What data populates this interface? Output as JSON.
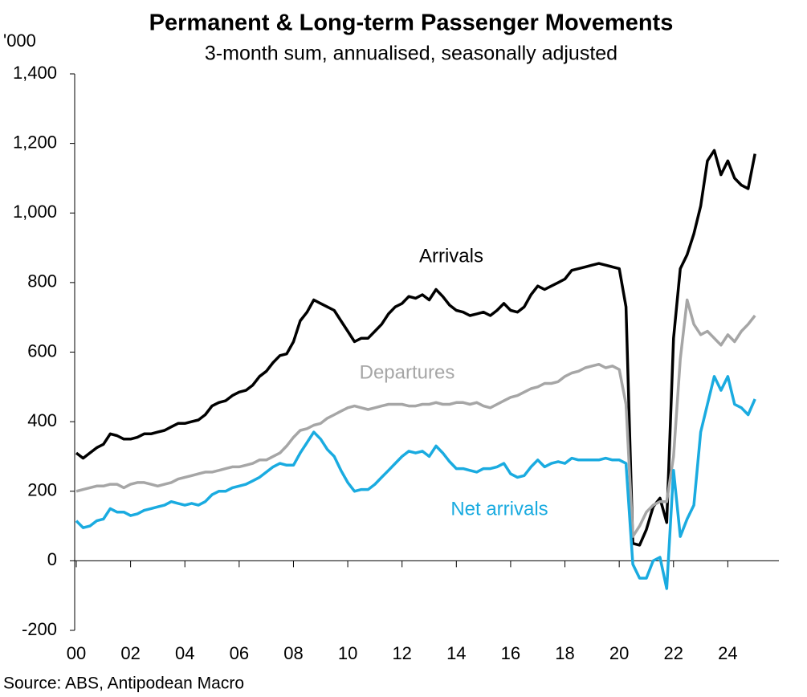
{
  "chart_data": {
    "type": "line",
    "title": "Permanent & Long-term Passenger Movements",
    "subtitle": "3-month sum, annualised, seasonally adjusted",
    "y_label": "'000",
    "source": "Source: ABS, Antipodean Macro",
    "xlim": [
      2000,
      2026
    ],
    "xticks": [
      {
        "value": 2000,
        "label": "00"
      },
      {
        "value": 2002,
        "label": "02"
      },
      {
        "value": 2004,
        "label": "04"
      },
      {
        "value": 2006,
        "label": "06"
      },
      {
        "value": 2008,
        "label": "08"
      },
      {
        "value": 2010,
        "label": "10"
      },
      {
        "value": 2012,
        "label": "12"
      },
      {
        "value": 2014,
        "label": "14"
      },
      {
        "value": 2016,
        "label": "16"
      },
      {
        "value": 2018,
        "label": "18"
      },
      {
        "value": 2020,
        "label": "20"
      },
      {
        "value": 2022,
        "label": "22"
      },
      {
        "value": 2024,
        "label": "24"
      }
    ],
    "ylim": [
      -200,
      1400
    ],
    "yticks": [
      -200,
      0,
      200,
      400,
      600,
      800,
      {
        "value": 1000,
        "label": "1,000"
      },
      {
        "value": 1200,
        "label": "1,200"
      },
      {
        "value": 1400,
        "label": "1,400"
      }
    ],
    "grid": false,
    "x": [
      2000,
      2000.25,
      2000.5,
      2000.75,
      2001,
      2001.25,
      2001.5,
      2001.75,
      2002,
      2002.25,
      2002.5,
      2002.75,
      2003,
      2003.25,
      2003.5,
      2003.75,
      2004,
      2004.25,
      2004.5,
      2004.75,
      2005,
      2005.25,
      2005.5,
      2005.75,
      2006,
      2006.25,
      2006.5,
      2006.75,
      2007,
      2007.25,
      2007.5,
      2007.75,
      2008,
      2008.25,
      2008.5,
      2008.75,
      2009,
      2009.25,
      2009.5,
      2009.75,
      2010,
      2010.25,
      2010.5,
      2010.75,
      2011,
      2011.25,
      2011.5,
      2011.75,
      2012,
      2012.25,
      2012.5,
      2012.75,
      2013,
      2013.25,
      2013.5,
      2013.75,
      2014,
      2014.25,
      2014.5,
      2014.75,
      2015,
      2015.25,
      2015.5,
      2015.75,
      2016,
      2016.25,
      2016.5,
      2016.75,
      2017,
      2017.25,
      2017.5,
      2017.75,
      2018,
      2018.25,
      2018.5,
      2018.75,
      2019,
      2019.25,
      2019.5,
      2019.75,
      2020,
      2020.25,
      2020.5,
      2020.75,
      2021,
      2021.25,
      2021.5,
      2021.75,
      2022,
      2022.25,
      2022.5,
      2022.75,
      2023,
      2023.25,
      2023.5,
      2023.75,
      2024,
      2024.25,
      2024.5,
      2024.75,
      2025
    ],
    "series": [
      {
        "name": "Arrivals",
        "color": "#000000",
        "values": [
          310,
          295,
          310,
          325,
          335,
          365,
          360,
          350,
          350,
          355,
          365,
          365,
          370,
          375,
          385,
          395,
          395,
          400,
          405,
          420,
          445,
          455,
          460,
          475,
          485,
          490,
          505,
          530,
          545,
          570,
          590,
          595,
          630,
          690,
          715,
          750,
          740,
          730,
          720,
          690,
          660,
          630,
          640,
          640,
          660,
          680,
          710,
          730,
          740,
          760,
          755,
          765,
          750,
          780,
          760,
          735,
          720,
          715,
          705,
          710,
          715,
          705,
          720,
          740,
          720,
          715,
          730,
          765,
          790,
          780,
          790,
          800,
          810,
          835,
          840,
          845,
          850,
          855,
          850,
          845,
          840,
          730,
          50,
          45,
          90,
          155,
          180,
          110,
          640,
          840,
          880,
          940,
          1020,
          1150,
          1180,
          1110,
          1150,
          1100,
          1080,
          1070,
          1170
        ]
      },
      {
        "name": "Departures",
        "color": "#a6a6a6",
        "values": [
          200,
          205,
          210,
          215,
          215,
          220,
          220,
          210,
          220,
          225,
          225,
          220,
          215,
          220,
          225,
          235,
          240,
          245,
          250,
          255,
          255,
          260,
          265,
          270,
          270,
          275,
          280,
          290,
          290,
          300,
          310,
          330,
          355,
          375,
          380,
          390,
          395,
          410,
          420,
          430,
          440,
          445,
          440,
          435,
          440,
          445,
          450,
          450,
          450,
          445,
          445,
          450,
          450,
          455,
          450,
          450,
          455,
          455,
          450,
          455,
          445,
          440,
          450,
          460,
          470,
          475,
          485,
          495,
          500,
          510,
          510,
          515,
          530,
          540,
          545,
          555,
          560,
          565,
          555,
          560,
          550,
          450,
          70,
          100,
          140,
          160,
          170,
          170,
          300,
          580,
          750,
          680,
          650,
          660,
          640,
          620,
          650,
          630,
          660,
          680,
          705
        ]
      },
      {
        "name": "Net arrivals",
        "color": "#1aabe0",
        "values": [
          115,
          95,
          100,
          115,
          120,
          150,
          140,
          140,
          130,
          135,
          145,
          150,
          155,
          160,
          170,
          165,
          160,
          165,
          160,
          170,
          190,
          200,
          200,
          210,
          215,
          220,
          230,
          240,
          255,
          270,
          280,
          275,
          275,
          310,
          340,
          370,
          350,
          320,
          300,
          260,
          225,
          200,
          205,
          205,
          220,
          240,
          260,
          280,
          300,
          315,
          310,
          315,
          300,
          330,
          310,
          285,
          265,
          265,
          260,
          255,
          265,
          265,
          270,
          280,
          250,
          240,
          245,
          270,
          290,
          270,
          280,
          285,
          280,
          295,
          290,
          290,
          290,
          290,
          295,
          290,
          290,
          280,
          -10,
          -50,
          -50,
          0,
          10,
          -80,
          260,
          70,
          120,
          160,
          370,
          450,
          530,
          490,
          530,
          450,
          440,
          420,
          465
        ]
      }
    ]
  }
}
